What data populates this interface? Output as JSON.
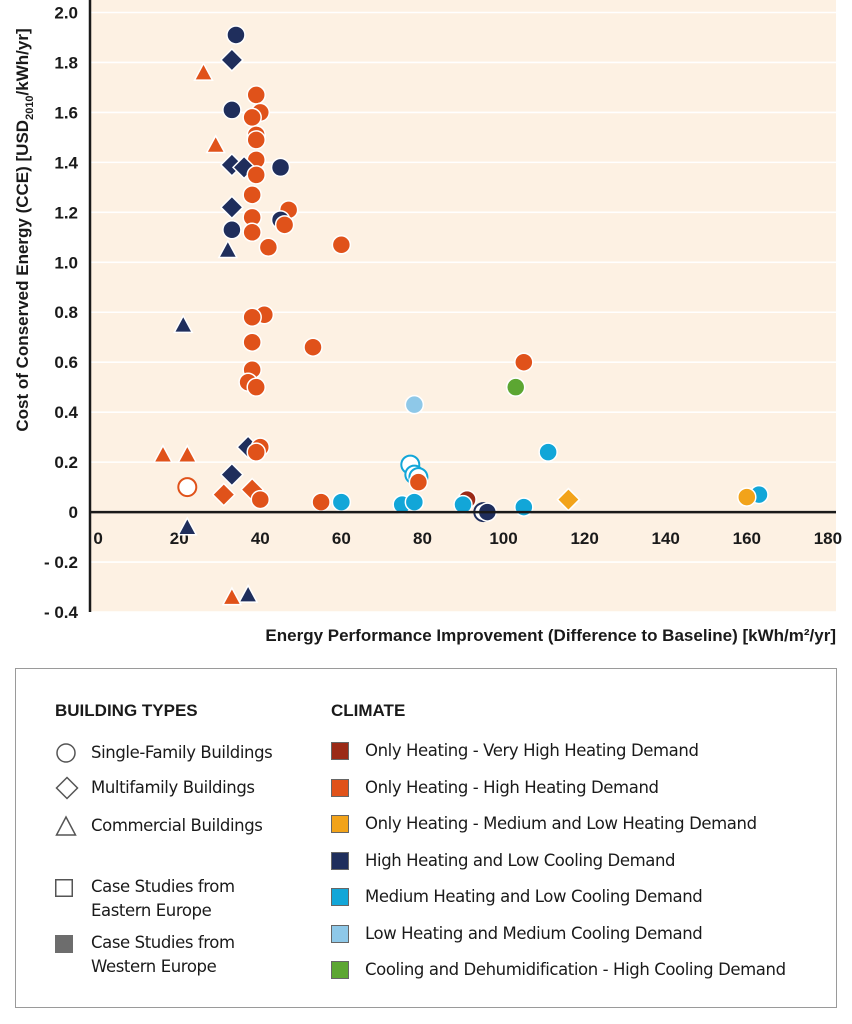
{
  "chart_data": {
    "type": "scatter",
    "xlabel": "Energy Performance Improvement (Difference to Baseline) [kWh/m²/yr]",
    "ylabel_main": "Cost of Conserved Energy (CCE) [USD",
    "ylabel_sub": "2010",
    "ylabel_end": "/kWh/yr]",
    "xlim": [
      -2,
      182
    ],
    "ylim": [
      -0.4,
      2.05
    ],
    "xticks": [
      0,
      20,
      40,
      60,
      80,
      100,
      120,
      140,
      160,
      180
    ],
    "xtick_labels": [
      "0",
      "20",
      "40",
      "60",
      "80",
      "100",
      "120",
      "140",
      "160",
      "180"
    ],
    "yticks": [
      -0.4,
      -0.2,
      0,
      0.2,
      0.4,
      0.6,
      0.8,
      1.0,
      1.2,
      1.4,
      1.6,
      1.8,
      2.0
    ],
    "ytick_labels": [
      "- 0.4",
      "- 0.2",
      "0",
      "0.2",
      "0.4",
      "0.6",
      "0.8",
      "1.0",
      "1.2",
      "1.4",
      "1.6",
      "1.8",
      "2.0"
    ],
    "grid": "horizontal",
    "background": "#fdf1e3",
    "gridline_color": "#ffffff",
    "climate_colors": {
      "very_high_heating": "#9b2a17",
      "high_heating": "#e0521a",
      "medium_low_heating": "#f2a31a",
      "high_heating_low_cooling": "#1f2e5c",
      "medium_heating_low_cooling": "#12a6d8",
      "low_heating_medium_cooling": "#8ec8e8",
      "cooling_dehumidification": "#5ca632"
    },
    "points": [
      {
        "x": 34,
        "y": 1.91,
        "shape": "circle",
        "climate": "high_heating_low_cooling",
        "filled": true
      },
      {
        "x": 33,
        "y": 1.81,
        "shape": "diamond",
        "climate": "high_heating_low_cooling",
        "filled": true
      },
      {
        "x": 26,
        "y": 1.76,
        "shape": "triangle",
        "climate": "high_heating",
        "filled": true
      },
      {
        "x": 39,
        "y": 1.67,
        "shape": "circle",
        "climate": "high_heating",
        "filled": true
      },
      {
        "x": 33,
        "y": 1.61,
        "shape": "circle",
        "climate": "high_heating_low_cooling",
        "filled": true
      },
      {
        "x": 40,
        "y": 1.6,
        "shape": "circle",
        "climate": "high_heating",
        "filled": true
      },
      {
        "x": 38,
        "y": 1.58,
        "shape": "circle",
        "climate": "high_heating",
        "filled": true
      },
      {
        "x": 39,
        "y": 1.51,
        "shape": "circle",
        "climate": "high_heating",
        "filled": true
      },
      {
        "x": 39,
        "y": 1.49,
        "shape": "circle",
        "climate": "high_heating",
        "filled": true
      },
      {
        "x": 29,
        "y": 1.47,
        "shape": "triangle",
        "climate": "high_heating",
        "filled": true
      },
      {
        "x": 39,
        "y": 1.41,
        "shape": "circle",
        "climate": "high_heating",
        "filled": true
      },
      {
        "x": 33,
        "y": 1.39,
        "shape": "diamond",
        "climate": "high_heating_low_cooling",
        "filled": true
      },
      {
        "x": 36,
        "y": 1.38,
        "shape": "diamond",
        "climate": "high_heating_low_cooling",
        "filled": true
      },
      {
        "x": 45,
        "y": 1.38,
        "shape": "circle",
        "climate": "high_heating_low_cooling",
        "filled": true
      },
      {
        "x": 39,
        "y": 1.35,
        "shape": "circle",
        "climate": "high_heating",
        "filled": true
      },
      {
        "x": 38,
        "y": 1.27,
        "shape": "circle",
        "climate": "high_heating",
        "filled": true
      },
      {
        "x": 33,
        "y": 1.22,
        "shape": "diamond",
        "climate": "high_heating_low_cooling",
        "filled": true
      },
      {
        "x": 47,
        "y": 1.21,
        "shape": "circle",
        "climate": "high_heating",
        "filled": true
      },
      {
        "x": 38,
        "y": 1.18,
        "shape": "circle",
        "climate": "high_heating",
        "filled": true
      },
      {
        "x": 45,
        "y": 1.17,
        "shape": "circle",
        "climate": "high_heating_low_cooling",
        "filled": true
      },
      {
        "x": 46,
        "y": 1.15,
        "shape": "circle",
        "climate": "high_heating",
        "filled": true
      },
      {
        "x": 33,
        "y": 1.13,
        "shape": "circle",
        "climate": "high_heating_low_cooling",
        "filled": true
      },
      {
        "x": 38,
        "y": 1.12,
        "shape": "circle",
        "climate": "high_heating",
        "filled": true
      },
      {
        "x": 60,
        "y": 1.07,
        "shape": "circle",
        "climate": "high_heating",
        "filled": true
      },
      {
        "x": 42,
        "y": 1.06,
        "shape": "circle",
        "climate": "high_heating",
        "filled": true
      },
      {
        "x": 32,
        "y": 1.05,
        "shape": "triangle",
        "climate": "high_heating_low_cooling",
        "filled": true
      },
      {
        "x": 41,
        "y": 0.79,
        "shape": "circle",
        "climate": "high_heating",
        "filled": true
      },
      {
        "x": 38,
        "y": 0.78,
        "shape": "circle",
        "climate": "high_heating",
        "filled": true
      },
      {
        "x": 21,
        "y": 0.75,
        "shape": "triangle",
        "climate": "high_heating_low_cooling",
        "filled": true
      },
      {
        "x": 38,
        "y": 0.68,
        "shape": "circle",
        "climate": "high_heating",
        "filled": true
      },
      {
        "x": 53,
        "y": 0.66,
        "shape": "circle",
        "climate": "high_heating",
        "filled": true
      },
      {
        "x": 105,
        "y": 0.6,
        "shape": "circle",
        "climate": "high_heating",
        "filled": true
      },
      {
        "x": 38,
        "y": 0.57,
        "shape": "circle",
        "climate": "high_heating",
        "filled": true
      },
      {
        "x": 37,
        "y": 0.52,
        "shape": "circle",
        "climate": "high_heating",
        "filled": true
      },
      {
        "x": 39,
        "y": 0.5,
        "shape": "circle",
        "climate": "high_heating",
        "filled": true
      },
      {
        "x": 103,
        "y": 0.5,
        "shape": "circle",
        "climate": "cooling_dehumidification",
        "filled": true
      },
      {
        "x": 78,
        "y": 0.43,
        "shape": "circle",
        "climate": "low_heating_medium_cooling",
        "filled": true
      },
      {
        "x": 37,
        "y": 0.26,
        "shape": "diamond",
        "climate": "high_heating_low_cooling",
        "filled": true
      },
      {
        "x": 40,
        "y": 0.26,
        "shape": "circle",
        "climate": "high_heating",
        "filled": true
      },
      {
        "x": 39,
        "y": 0.24,
        "shape": "circle",
        "climate": "high_heating",
        "filled": true
      },
      {
        "x": 111,
        "y": 0.24,
        "shape": "circle",
        "climate": "medium_heating_low_cooling",
        "filled": true
      },
      {
        "x": 16,
        "y": 0.23,
        "shape": "triangle",
        "climate": "high_heating",
        "filled": true
      },
      {
        "x": 22,
        "y": 0.23,
        "shape": "triangle",
        "climate": "high_heating",
        "filled": true
      },
      {
        "x": 77,
        "y": 0.19,
        "shape": "circle",
        "climate": "medium_heating_low_cooling",
        "filled": false
      },
      {
        "x": 78,
        "y": 0.15,
        "shape": "circle",
        "climate": "medium_heating_low_cooling",
        "filled": false
      },
      {
        "x": 33,
        "y": 0.15,
        "shape": "diamond",
        "climate": "high_heating_low_cooling",
        "filled": true
      },
      {
        "x": 79,
        "y": 0.14,
        "shape": "circle",
        "climate": "medium_heating_low_cooling",
        "filled": false
      },
      {
        "x": 79,
        "y": 0.12,
        "shape": "circle",
        "climate": "high_heating",
        "filled": true
      },
      {
        "x": 22,
        "y": 0.1,
        "shape": "circle",
        "climate": "high_heating",
        "filled": false
      },
      {
        "x": 38,
        "y": 0.09,
        "shape": "diamond",
        "climate": "high_heating",
        "filled": true
      },
      {
        "x": 31,
        "y": 0.07,
        "shape": "diamond",
        "climate": "high_heating",
        "filled": true
      },
      {
        "x": 163,
        "y": 0.07,
        "shape": "circle",
        "climate": "medium_heating_low_cooling",
        "filled": true
      },
      {
        "x": 160,
        "y": 0.06,
        "shape": "circle",
        "climate": "medium_low_heating",
        "filled": true
      },
      {
        "x": 40,
        "y": 0.05,
        "shape": "circle",
        "climate": "high_heating",
        "filled": true
      },
      {
        "x": 116,
        "y": 0.05,
        "shape": "diamond",
        "climate": "medium_low_heating",
        "filled": true
      },
      {
        "x": 91,
        "y": 0.05,
        "shape": "circle",
        "climate": "very_high_heating",
        "filled": true
      },
      {
        "x": 55,
        "y": 0.04,
        "shape": "circle",
        "climate": "high_heating",
        "filled": true
      },
      {
        "x": 60,
        "y": 0.04,
        "shape": "circle",
        "climate": "medium_heating_low_cooling",
        "filled": true
      },
      {
        "x": 75,
        "y": 0.03,
        "shape": "circle",
        "climate": "medium_heating_low_cooling",
        "filled": true
      },
      {
        "x": 78,
        "y": 0.04,
        "shape": "circle",
        "climate": "medium_heating_low_cooling",
        "filled": true
      },
      {
        "x": 90,
        "y": 0.03,
        "shape": "circle",
        "climate": "medium_heating_low_cooling",
        "filled": true
      },
      {
        "x": 105,
        "y": 0.02,
        "shape": "circle",
        "climate": "medium_heating_low_cooling",
        "filled": true
      },
      {
        "x": 95,
        "y": 0.0,
        "shape": "circle",
        "climate": "high_heating_low_cooling",
        "filled": false
      },
      {
        "x": 96,
        "y": 0.0,
        "shape": "circle",
        "climate": "high_heating_low_cooling",
        "filled": true
      },
      {
        "x": 22,
        "y": -0.06,
        "shape": "triangle",
        "climate": "high_heating_low_cooling",
        "filled": true
      },
      {
        "x": 37,
        "y": -0.33,
        "shape": "triangle",
        "climate": "high_heating_low_cooling",
        "filled": true
      },
      {
        "x": 33,
        "y": -0.34,
        "shape": "triangle",
        "climate": "high_heating",
        "filled": true
      }
    ]
  },
  "legend": {
    "building_types_title": "BUILDING TYPES",
    "climate_title": "CLIMATE",
    "building_types": [
      {
        "label": "Single-Family Buildings",
        "symbol": "circle-outline-icon"
      },
      {
        "label": "Multifamily Buildings",
        "symbol": "diamond-outline-icon"
      },
      {
        "label": "Commercial Buildings",
        "symbol": "triangle-outline-icon"
      }
    ],
    "case_studies": [
      {
        "line1": "Case Studies from",
        "line2": "Eastern Europe",
        "symbol": "square-outline-icon",
        "fill": "#ffffff"
      },
      {
        "line1": "Case Studies from",
        "line2": "Western Europe",
        "symbol": "square-filled-icon",
        "fill": "#6d6d6d"
      }
    ],
    "climate": [
      {
        "label": "Only Heating - Very High Heating Demand",
        "color": "#9b2a17"
      },
      {
        "label": "Only Heating -  High Heating Demand",
        "color": "#e0521a"
      },
      {
        "label": "Only Heating - Medium and Low Heating Demand",
        "color": "#f2a31a"
      },
      {
        "label": "High Heating and Low Cooling Demand",
        "color": "#1f2e5c"
      },
      {
        "label": "Medium Heating and Low Cooling Demand",
        "color": "#12a6d8"
      },
      {
        "label": "Low Heating and Medium Cooling Demand",
        "color": "#8ec8e8"
      },
      {
        "label": "Cooling and Dehumidification - High Cooling Demand",
        "color": "#5ca632"
      }
    ]
  }
}
